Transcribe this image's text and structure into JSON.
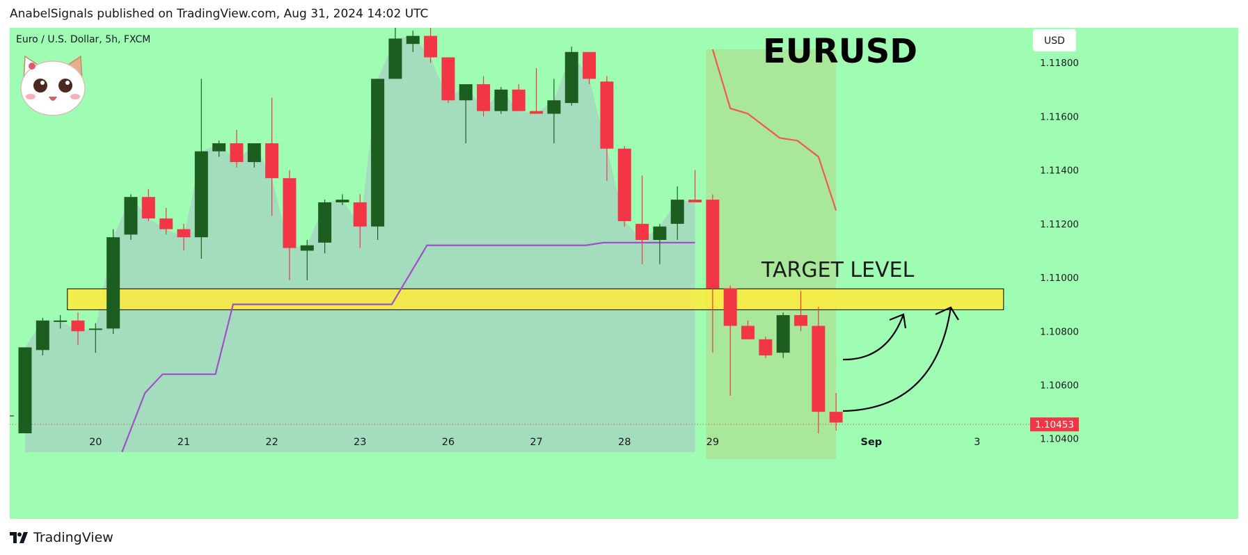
{
  "header": {
    "attribution": "AnabelSignals published on TradingView.com, Aug 31, 2024 14:02 UTC"
  },
  "footer": {
    "brand": "TradingView"
  },
  "colors": {
    "background": "#9ffdb3",
    "bull": "#1b5e20",
    "bear": "#f23645",
    "area": "#a5d6c0",
    "purple_line": "#a04fc8",
    "red_line": "#f2584d",
    "target_zone": "#ffeb3b",
    "price_tag": "#f23645"
  },
  "chart_data": {
    "type": "candlestick",
    "symbol_label": "Euro / U.S. Dollar, 5h, FXCM",
    "title": "EURUSD",
    "currency_button": "USD",
    "annotation": "TARGET LEVEL",
    "last_price": "1.10453",
    "y_ticks": [
      "1.11800",
      "1.11600",
      "1.11400",
      "1.11200",
      "1.11000",
      "1.10800",
      "1.10600",
      "1.10400"
    ],
    "ylim": [
      1.1035,
      1.1193
    ],
    "x_labels": [
      {
        "label": "20",
        "x": 4
      },
      {
        "label": "21",
        "x": 9
      },
      {
        "label": "22",
        "x": 14
      },
      {
        "label": "23",
        "x": 19
      },
      {
        "label": "26",
        "x": 24
      },
      {
        "label": "27",
        "x": 29
      },
      {
        "label": "28",
        "x": 34
      },
      {
        "label": "29",
        "x": 39
      },
      {
        "label": "Sep",
        "x": 48,
        "bold": true
      },
      {
        "label": "3",
        "x": 54
      }
    ],
    "candles": [
      {
        "x": 0,
        "o": 1.1042,
        "h": 1.1074,
        "l": 1.1042,
        "c": 1.1074
      },
      {
        "x": 1,
        "o": 1.1073,
        "h": 1.1085,
        "l": 1.1071,
        "c": 1.1084
      },
      {
        "x": 2,
        "o": 1.1084,
        "h": 1.1086,
        "l": 1.1081,
        "c": 1.1084
      },
      {
        "x": 3,
        "o": 1.1084,
        "h": 1.1087,
        "l": 1.1075,
        "c": 1.108
      },
      {
        "x": 4,
        "o": 1.1081,
        "h": 1.1083,
        "l": 1.1072,
        "c": 1.1081
      },
      {
        "x": 5,
        "o": 1.1081,
        "h": 1.1118,
        "l": 1.1079,
        "c": 1.1115
      },
      {
        "x": 6,
        "o": 1.1116,
        "h": 1.1131,
        "l": 1.1114,
        "c": 1.113
      },
      {
        "x": 7,
        "o": 1.113,
        "h": 1.1133,
        "l": 1.1121,
        "c": 1.1122
      },
      {
        "x": 8,
        "o": 1.1122,
        "h": 1.1126,
        "l": 1.1116,
        "c": 1.1118
      },
      {
        "x": 9,
        "o": 1.1118,
        "h": 1.112,
        "l": 1.111,
        "c": 1.1115
      },
      {
        "x": 10,
        "o": 1.1115,
        "h": 1.1174,
        "l": 1.1107,
        "c": 1.1147
      },
      {
        "x": 11,
        "o": 1.1147,
        "h": 1.1151,
        "l": 1.1145,
        "c": 1.115
      },
      {
        "x": 12,
        "o": 1.115,
        "h": 1.1155,
        "l": 1.1141,
        "c": 1.1143
      },
      {
        "x": 13,
        "o": 1.1143,
        "h": 1.115,
        "l": 1.1141,
        "c": 1.115
      },
      {
        "x": 14,
        "o": 1.115,
        "h": 1.1167,
        "l": 1.1123,
        "c": 1.1137
      },
      {
        "x": 15,
        "o": 1.1137,
        "h": 1.114,
        "l": 1.1099,
        "c": 1.1111
      },
      {
        "x": 16,
        "o": 1.111,
        "h": 1.1114,
        "l": 1.1099,
        "c": 1.1112
      },
      {
        "x": 17,
        "o": 1.1113,
        "h": 1.1129,
        "l": 1.1109,
        "c": 1.1128
      },
      {
        "x": 18,
        "o": 1.1128,
        "h": 1.1131,
        "l": 1.1127,
        "c": 1.1129
      },
      {
        "x": 19,
        "o": 1.1128,
        "h": 1.1131,
        "l": 1.1111,
        "c": 1.1119
      },
      {
        "x": 20,
        "o": 1.1119,
        "h": 1.1174,
        "l": 1.1114,
        "c": 1.1174
      },
      {
        "x": 21,
        "o": 1.1174,
        "h": 1.1193,
        "l": 1.1174,
        "c": 1.1189
      },
      {
        "x": 22,
        "o": 1.1187,
        "h": 1.1192,
        "l": 1.1184,
        "c": 1.119
      },
      {
        "x": 23,
        "o": 1.119,
        "h": 1.1193,
        "l": 1.118,
        "c": 1.1182
      },
      {
        "x": 24,
        "o": 1.1182,
        "h": 1.1182,
        "l": 1.1165,
        "c": 1.1166
      },
      {
        "x": 25,
        "o": 1.1166,
        "h": 1.1172,
        "l": 1.115,
        "c": 1.1172
      },
      {
        "x": 26,
        "o": 1.1172,
        "h": 1.1175,
        "l": 1.116,
        "c": 1.1162
      },
      {
        "x": 27,
        "o": 1.1162,
        "h": 1.1171,
        "l": 1.1161,
        "c": 1.117
      },
      {
        "x": 28,
        "o": 1.117,
        "h": 1.1172,
        "l": 1.1162,
        "c": 1.1162
      },
      {
        "x": 29,
        "o": 1.1162,
        "h": 1.1178,
        "l": 1.1161,
        "c": 1.1161
      },
      {
        "x": 30,
        "o": 1.1161,
        "h": 1.1174,
        "l": 1.115,
        "c": 1.1166
      },
      {
        "x": 31,
        "o": 1.1165,
        "h": 1.1186,
        "l": 1.1164,
        "c": 1.1184
      },
      {
        "x": 32,
        "o": 1.1184,
        "h": 1.1184,
        "l": 1.1172,
        "c": 1.1174
      },
      {
        "x": 33,
        "o": 1.1173,
        "h": 1.1175,
        "l": 1.1136,
        "c": 1.1148
      },
      {
        "x": 34,
        "o": 1.1148,
        "h": 1.1149,
        "l": 1.1119,
        "c": 1.1121
      },
      {
        "x": 35,
        "o": 1.112,
        "h": 1.1138,
        "l": 1.1105,
        "c": 1.1114
      },
      {
        "x": 36,
        "o": 1.1114,
        "h": 1.112,
        "l": 1.1105,
        "c": 1.1119
      },
      {
        "x": 37,
        "o": 1.112,
        "h": 1.1134,
        "l": 1.1114,
        "c": 1.1129
      },
      {
        "x": 38,
        "o": 1.1129,
        "h": 1.114,
        "l": 1.1128,
        "c": 1.1128
      },
      {
        "x": 39,
        "o": 1.1129,
        "h": 1.1131,
        "l": 1.1072,
        "c": 1.1096
      },
      {
        "x": 40,
        "o": 1.1096,
        "h": 1.1097,
        "l": 1.1056,
        "c": 1.1082
      },
      {
        "x": 41,
        "o": 1.1082,
        "h": 1.1084,
        "l": 1.1077,
        "c": 1.1077
      },
      {
        "x": 42,
        "o": 1.1077,
        "h": 1.1078,
        "l": 1.107,
        "c": 1.1071
      },
      {
        "x": 43,
        "o": 1.1072,
        "h": 1.1087,
        "l": 1.107,
        "c": 1.1086
      },
      {
        "x": 44,
        "o": 1.1086,
        "h": 1.1095,
        "l": 1.108,
        "c": 1.1082
      },
      {
        "x": 45,
        "o": 1.1082,
        "h": 1.1089,
        "l": 1.1042,
        "c": 1.105
      },
      {
        "x": 46,
        "o": 1.105,
        "h": 1.1057,
        "l": 1.1043,
        "c": 1.1046
      }
    ],
    "purple_line": [
      {
        "x": 5.5,
        "y": 1.1035
      },
      {
        "x": 6.8,
        "y": 1.1057
      },
      {
        "x": 7.8,
        "y": 1.1064
      },
      {
        "x": 10.8,
        "y": 1.1064
      },
      {
        "x": 11.8,
        "y": 1.109
      },
      {
        "x": 20.8,
        "y": 1.109
      },
      {
        "x": 22.8,
        "y": 1.1112
      },
      {
        "x": 31.8,
        "y": 1.1112
      },
      {
        "x": 32.8,
        "y": 1.1113
      },
      {
        "x": 38.0,
        "y": 1.1113
      }
    ],
    "red_line": [
      {
        "x": 39.0,
        "y": 1.1185
      },
      {
        "x": 40.0,
        "y": 1.1163
      },
      {
        "x": 41.0,
        "y": 1.1161
      },
      {
        "x": 42.8,
        "y": 1.1152
      },
      {
        "x": 43.8,
        "y": 1.1151
      },
      {
        "x": 45.0,
        "y": 1.1145
      },
      {
        "x": 46.0,
        "y": 1.1125
      }
    ],
    "target_zone": {
      "x_start": 2.4,
      "x_end": 55.5,
      "y_low": 1.1088,
      "y_high": 1.10958
    }
  }
}
